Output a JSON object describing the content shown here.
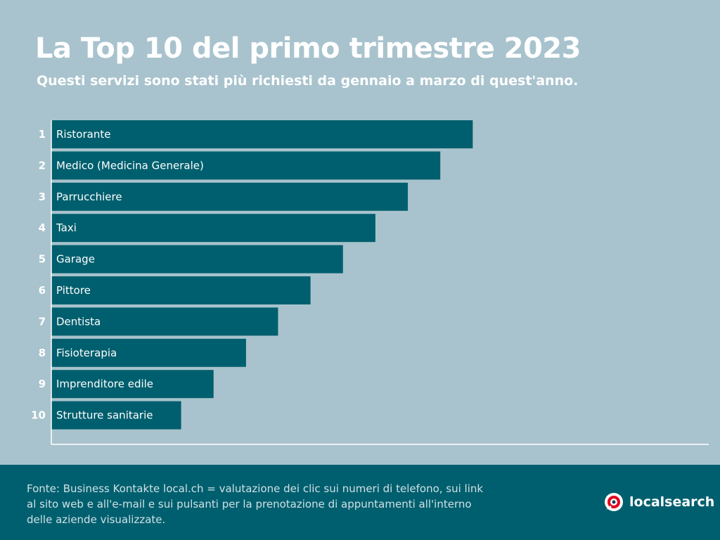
{
  "header": {
    "title": "La Top 10 del primo trimestre 2023",
    "subtitle": "Questi servizi sono stati più richiesti da gennaio a marzo di quest'anno."
  },
  "chart_data": {
    "type": "bar",
    "orientation": "horizontal",
    "title": "La Top 10 del primo trimestre 2023",
    "subtitle": "Questi servizi sono stati più richiesti da gennaio a marzo di quest'anno.",
    "ranks": [
      "1",
      "2",
      "3",
      "4",
      "5",
      "6",
      "7",
      "8",
      "9",
      "10"
    ],
    "categories": [
      "Ristorante",
      "Medico (Medicina Generale)",
      "Parrucchiere",
      "Taxi",
      "Garage",
      "Pittore",
      "Dentista",
      "Fisioterapia",
      "Imprenditore edile",
      "Strutture sanitarie"
    ],
    "values": [
      10,
      9.23,
      8.46,
      7.69,
      6.92,
      6.15,
      5.38,
      4.62,
      3.85,
      3.08
    ],
    "value_note": "",
    "xlim": [
      0,
      15.6
    ],
    "grid": false,
    "legend": "none",
    "bar_color": "#005f6e"
  },
  "footer": {
    "source": "Fonte: Business Kontakte local.ch = valutazione dei clic sui numeri di telefono, sui link al sito web e all'e-mail e sui pulsanti per la prenotazione di appuntamenti all'interno delle aziende visualizzate.",
    "brand": "localsearch"
  },
  "colors": {
    "background": "#a8c3cd",
    "bar": "#005f6e",
    "footer": "#005f6e",
    "text": "#ffffff",
    "logo_red": "#e3001b"
  },
  "icons": {
    "brand_logo": "localsearch-logo-icon"
  }
}
